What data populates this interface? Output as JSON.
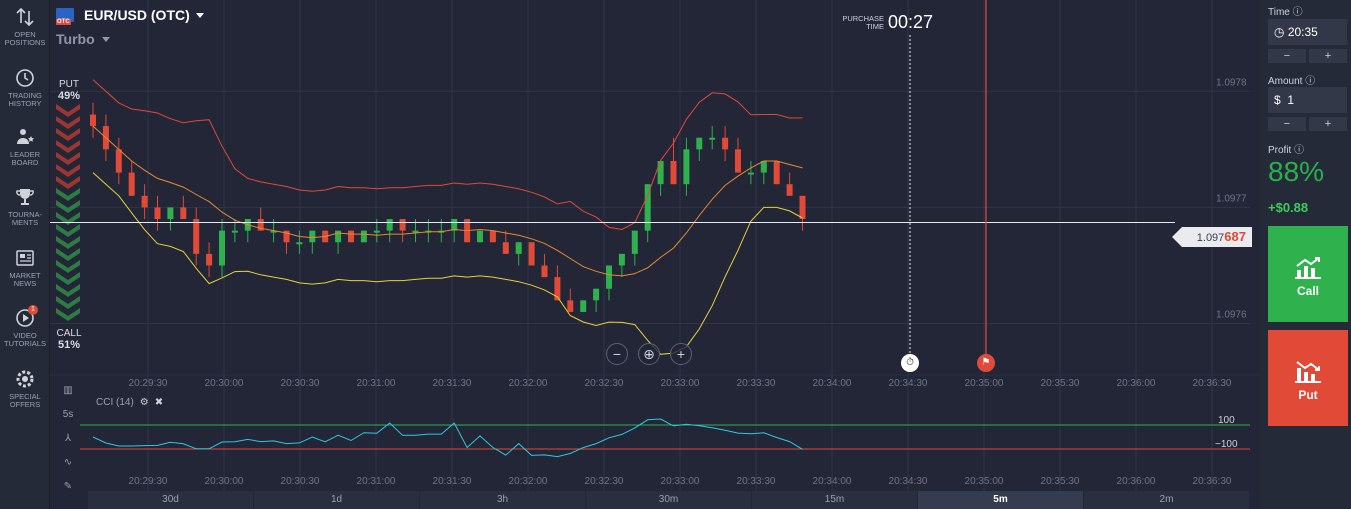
{
  "sidebar": {
    "items": [
      {
        "label1": "OPEN",
        "label2": "POSITIONS",
        "icon": "arrows-updown-icon"
      },
      {
        "label1": "TRADING",
        "label2": "HISTORY",
        "icon": "history-icon"
      },
      {
        "label1": "LEADER",
        "label2": "BOARD",
        "icon": "leaderboard-icon"
      },
      {
        "label1": "TOURNA-",
        "label2": "MENTS",
        "icon": "trophy-icon"
      },
      {
        "label1": "MARKET",
        "label2": "NEWS",
        "icon": "news-icon"
      },
      {
        "label1": "VIDEO",
        "label2": "TUTORIALS",
        "icon": "play-icon",
        "badge": "1"
      },
      {
        "label1": "SPECIAL",
        "label2": "OFFERS",
        "icon": "gear-offer-icon"
      }
    ]
  },
  "header": {
    "asset": "EUR/USD (OTC)",
    "flag_badge": "OTC",
    "mode": "Turbo",
    "purchase_label1": "PURCHASE",
    "purchase_label2": "TIME",
    "purchase_time": "00:27"
  },
  "sentiment": {
    "put_label": "PUT",
    "put_pct": "49%",
    "call_label": "CALL",
    "call_pct": "51%"
  },
  "price": {
    "current_prefix": "1.097",
    "current_suffix": "687",
    "current_value": 1.097687
  },
  "indicator": {
    "name": "CCI (14)",
    "interval_label": "5s",
    "upper_label": "100",
    "lower_label": "−100"
  },
  "timeframes": {
    "items": [
      "30d",
      "1d",
      "3h",
      "30m",
      "15m",
      "5m",
      "2m"
    ],
    "active": "5m"
  },
  "panel": {
    "time_label": "Time",
    "time_value": "20:35",
    "amount_label": "Amount",
    "amount_currency": "$",
    "amount_value": "1",
    "minus": "−",
    "plus": "+",
    "profit_label": "Profit",
    "profit_pct": "88%",
    "profit_amount": "+$0.88",
    "call_label": "Call",
    "put_label": "Put"
  },
  "colors": {
    "up": "#2fb24d",
    "down": "#e04a37",
    "band_outer": "#e04a37",
    "band_mid": "#e8892d",
    "band_lower": "#e8d23a",
    "cci_line": "#30c8e0"
  },
  "chart_data": {
    "type": "candlestick",
    "x_labels": [
      "20:29:30",
      "20:30:00",
      "20:30:30",
      "20:31:00",
      "20:31:30",
      "20:32:00",
      "20:32:30",
      "20:33:00",
      "20:33:30",
      "20:34:00",
      "20:34:30",
      "20:35:00",
      "20:35:30",
      "20:36:00",
      "20:36:30"
    ],
    "y_labels": [
      "1.0978",
      "1.0977",
      "1.0976"
    ],
    "ylim": [
      1.09756,
      1.09787
    ],
    "candles": [
      [
        1.09778,
        1.09779,
        1.09776,
        1.09777
      ],
      [
        1.09777,
        1.09778,
        1.09774,
        1.09775
      ],
      [
        1.09775,
        1.09776,
        1.09772,
        1.09773
      ],
      [
        1.09773,
        1.09774,
        1.09771,
        1.09771
      ],
      [
        1.09771,
        1.09772,
        1.09769,
        1.0977
      ],
      [
        1.0977,
        1.09771,
        1.09768,
        1.09769
      ],
      [
        1.09769,
        1.0977,
        1.09768,
        1.0977
      ],
      [
        1.0977,
        1.09771,
        1.09769,
        1.09769
      ],
      [
        1.09769,
        1.0977,
        1.09765,
        1.09766
      ],
      [
        1.09766,
        1.09767,
        1.09764,
        1.09765
      ],
      [
        1.09765,
        1.09769,
        1.09764,
        1.09768
      ],
      [
        1.09768,
        1.09769,
        1.09767,
        1.09768
      ],
      [
        1.09768,
        1.09769,
        1.09767,
        1.09769
      ],
      [
        1.09769,
        1.0977,
        1.09768,
        1.09768
      ],
      [
        1.09768,
        1.09769,
        1.09767,
        1.09768
      ],
      [
        1.09768,
        1.09768,
        1.09766,
        1.09767
      ],
      [
        1.09767,
        1.09768,
        1.09766,
        1.09767
      ],
      [
        1.09767,
        1.09768,
        1.09766,
        1.09768
      ],
      [
        1.09768,
        1.09768,
        1.09767,
        1.09767
      ],
      [
        1.09767,
        1.09768,
        1.09766,
        1.09768
      ],
      [
        1.09768,
        1.09768,
        1.09767,
        1.09767
      ],
      [
        1.09767,
        1.09768,
        1.09767,
        1.09768
      ],
      [
        1.09768,
        1.09769,
        1.09767,
        1.09768
      ],
      [
        1.09768,
        1.09769,
        1.09767,
        1.09769
      ],
      [
        1.09769,
        1.09769,
        1.09767,
        1.09768
      ],
      [
        1.09768,
        1.09769,
        1.09767,
        1.09768
      ],
      [
        1.09768,
        1.09769,
        1.09767,
        1.09768
      ],
      [
        1.09768,
        1.09769,
        1.09767,
        1.09768
      ],
      [
        1.09768,
        1.09769,
        1.09767,
        1.09769
      ],
      [
        1.09769,
        1.09769,
        1.09767,
        1.09767
      ],
      [
        1.09767,
        1.09768,
        1.09767,
        1.09768
      ],
      [
        1.09768,
        1.09768,
        1.09767,
        1.09767
      ],
      [
        1.09767,
        1.09768,
        1.09766,
        1.09766
      ],
      [
        1.09766,
        1.09767,
        1.09765,
        1.09767
      ],
      [
        1.09767,
        1.09767,
        1.09765,
        1.09765
      ],
      [
        1.09765,
        1.09766,
        1.09764,
        1.09764
      ],
      [
        1.09764,
        1.09765,
        1.09762,
        1.09762
      ],
      [
        1.09762,
        1.09763,
        1.09761,
        1.09761
      ],
      [
        1.09761,
        1.09762,
        1.09761,
        1.09762
      ],
      [
        1.09762,
        1.09763,
        1.09761,
        1.09763
      ],
      [
        1.09763,
        1.09765,
        1.09762,
        1.09765
      ],
      [
        1.09765,
        1.09766,
        1.09764,
        1.09766
      ],
      [
        1.09766,
        1.09768,
        1.09765,
        1.09768
      ],
      [
        1.09768,
        1.09772,
        1.09767,
        1.09772
      ],
      [
        1.09772,
        1.09774,
        1.09771,
        1.09774
      ],
      [
        1.09774,
        1.09776,
        1.09772,
        1.09772
      ],
      [
        1.09772,
        1.09776,
        1.09771,
        1.09775
      ],
      [
        1.09775,
        1.09776,
        1.09774,
        1.09776
      ],
      [
        1.09776,
        1.09777,
        1.09775,
        1.09776
      ],
      [
        1.09776,
        1.09777,
        1.09774,
        1.09775
      ],
      [
        1.09775,
        1.09776,
        1.09773,
        1.09773
      ],
      [
        1.09773,
        1.09774,
        1.09772,
        1.09773
      ],
      [
        1.09773,
        1.09774,
        1.09772,
        1.09774
      ],
      [
        1.09774,
        1.09774,
        1.09772,
        1.09772
      ],
      [
        1.09772,
        1.09773,
        1.09771,
        1.09771
      ],
      [
        1.09771,
        1.09771,
        1.09768,
        1.09769
      ]
    ]
  }
}
